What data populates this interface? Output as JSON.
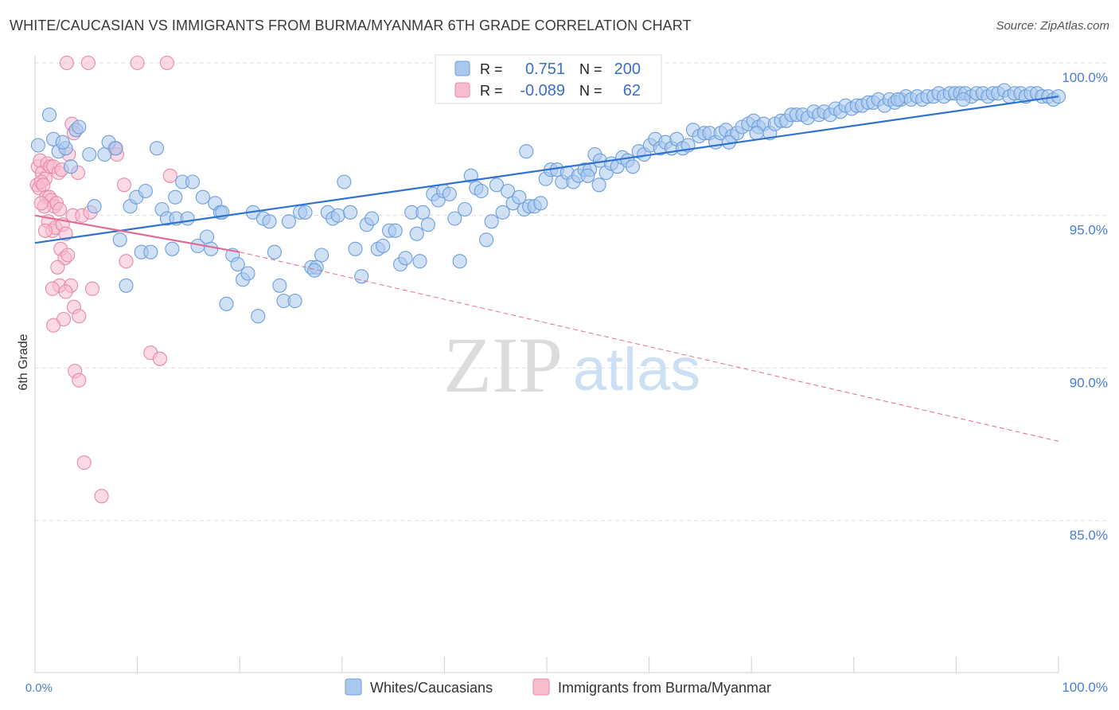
{
  "title": "WHITE/CAUCASIAN VS IMMIGRANTS FROM BURMA/MYANMAR 6TH GRADE CORRELATION CHART",
  "source": "Source: ZipAtlas.com",
  "watermark": {
    "zip": "ZIP",
    "atlas": "atlas"
  },
  "colors": {
    "blue_fill": "#aac8ee",
    "blue_stroke": "#6d9fdc",
    "blue_line": "#2f72d0",
    "pink_fill": "#f7bccd",
    "pink_stroke": "#e88aa8",
    "pink_line": "#e46a96",
    "tick_label": "#4a7fcf",
    "grid": "#dedede"
  },
  "legend": {
    "rows": [
      {
        "r_label": "R =",
        "r_value": "0.751",
        "n_label": "N =",
        "n_value": "200"
      },
      {
        "r_label": "R =",
        "r_value": "-0.089",
        "n_label": "N =",
        "n_value": "62"
      }
    ]
  },
  "bottom_legend": [
    "Whites/Caucasians",
    "Immigrants from Burma/Myanmar"
  ],
  "chart_data": {
    "type": "scatter",
    "title": "WHITE/CAUCASIAN VS IMMIGRANTS FROM BURMA/MYANMAR 6TH GRADE CORRELATION CHART",
    "xlabel": "",
    "ylabel": "6th Grade",
    "xlim": [
      0,
      100
    ],
    "ylim": [
      80.5,
      100.8
    ],
    "x_tick_labels": [
      "0.0%",
      "100.0%"
    ],
    "y_ticks": [
      85,
      90,
      95,
      100
    ],
    "y_tick_labels": [
      "85.0%",
      "90.0%",
      "95.0%",
      "100.0%"
    ],
    "grid": true,
    "legend_position": "top-center",
    "series": [
      {
        "name": "Whites/Caucasians",
        "r": 0.751,
        "n": 200,
        "trend": {
          "x": [
            0,
            100
          ],
          "y": [
            94.1,
            98.9
          ]
        },
        "points": [
          [
            0.3,
            97.3
          ],
          [
            1.4,
            98.3
          ],
          [
            1.8,
            97.5
          ],
          [
            2.3,
            97.1
          ],
          [
            3.0,
            97.2
          ],
          [
            3.5,
            96.6
          ],
          [
            2.7,
            97.4
          ],
          [
            4.0,
            97.8
          ],
          [
            4.3,
            97.9
          ],
          [
            5.3,
            97.0
          ],
          [
            5.8,
            95.3
          ],
          [
            6.8,
            97.0
          ],
          [
            7.2,
            97.4
          ],
          [
            7.9,
            97.2
          ],
          [
            8.3,
            94.2
          ],
          [
            8.9,
            92.7
          ],
          [
            9.3,
            95.3
          ],
          [
            9.9,
            95.6
          ],
          [
            10.4,
            93.8
          ],
          [
            10.8,
            95.8
          ],
          [
            11.3,
            93.8
          ],
          [
            11.9,
            97.2
          ],
          [
            12.4,
            95.2
          ],
          [
            12.9,
            94.9
          ],
          [
            13.4,
            93.9
          ],
          [
            13.8,
            94.9
          ],
          [
            14.4,
            96.1
          ],
          [
            14.9,
            94.9
          ],
          [
            15.4,
            96.1
          ],
          [
            15.9,
            94.0
          ],
          [
            16.4,
            95.6
          ],
          [
            16.8,
            94.3
          ],
          [
            17.2,
            93.9
          ],
          [
            17.6,
            95.4
          ],
          [
            18.1,
            95.1
          ],
          [
            18.7,
            92.1
          ],
          [
            19.3,
            93.7
          ],
          [
            19.8,
            93.4
          ],
          [
            20.3,
            92.9
          ],
          [
            20.8,
            93.1
          ],
          [
            21.3,
            95.1
          ],
          [
            21.8,
            91.7
          ],
          [
            22.3,
            94.9
          ],
          [
            22.9,
            94.8
          ],
          [
            23.4,
            93.8
          ],
          [
            23.9,
            92.7
          ],
          [
            24.3,
            92.2
          ],
          [
            24.8,
            94.8
          ],
          [
            25.4,
            92.2
          ],
          [
            25.9,
            95.1
          ],
          [
            26.4,
            95.1
          ],
          [
            27.0,
            93.3
          ],
          [
            27.5,
            93.3
          ],
          [
            28.0,
            93.7
          ],
          [
            28.6,
            95.1
          ],
          [
            29.1,
            94.9
          ],
          [
            29.6,
            95.0
          ],
          [
            30.2,
            96.1
          ],
          [
            30.8,
            95.1
          ],
          [
            31.3,
            93.9
          ],
          [
            31.9,
            93.0
          ],
          [
            32.4,
            94.7
          ],
          [
            32.9,
            94.9
          ],
          [
            33.5,
            93.9
          ],
          [
            34.0,
            94.0
          ],
          [
            34.6,
            94.5
          ],
          [
            35.2,
            94.5
          ],
          [
            35.7,
            93.4
          ],
          [
            36.2,
            93.6
          ],
          [
            36.8,
            95.1
          ],
          [
            37.3,
            94.4
          ],
          [
            37.9,
            95.1
          ],
          [
            38.4,
            94.7
          ],
          [
            38.9,
            95.7
          ],
          [
            39.4,
            95.5
          ],
          [
            39.9,
            95.8
          ],
          [
            40.5,
            95.7
          ],
          [
            41.0,
            94.9
          ],
          [
            41.5,
            93.5
          ],
          [
            42.0,
            95.2
          ],
          [
            42.6,
            96.3
          ],
          [
            43.1,
            95.9
          ],
          [
            43.6,
            95.8
          ],
          [
            44.1,
            94.2
          ],
          [
            44.6,
            94.8
          ],
          [
            45.1,
            96.0
          ],
          [
            45.7,
            95.1
          ],
          [
            46.2,
            95.8
          ],
          [
            46.7,
            95.4
          ],
          [
            47.3,
            95.6
          ],
          [
            47.8,
            95.2
          ],
          [
            48.3,
            95.3
          ],
          [
            48.8,
            95.3
          ],
          [
            49.4,
            95.4
          ],
          [
            49.9,
            96.2
          ],
          [
            50.4,
            96.5
          ],
          [
            51.0,
            96.5
          ],
          [
            51.5,
            96.1
          ],
          [
            52.0,
            96.4
          ],
          [
            52.6,
            96.1
          ],
          [
            53.1,
            96.3
          ],
          [
            53.7,
            96.5
          ],
          [
            54.2,
            96.5
          ],
          [
            54.7,
            97.0
          ],
          [
            55.2,
            96.8
          ],
          [
            55.8,
            96.4
          ],
          [
            56.3,
            96.7
          ],
          [
            56.9,
            96.6
          ],
          [
            57.4,
            96.9
          ],
          [
            57.9,
            96.8
          ],
          [
            58.4,
            96.6
          ],
          [
            59.0,
            97.1
          ],
          [
            59.5,
            97.0
          ],
          [
            60.1,
            97.3
          ],
          [
            60.6,
            97.5
          ],
          [
            61.1,
            97.2
          ],
          [
            61.6,
            97.4
          ],
          [
            62.2,
            97.2
          ],
          [
            62.7,
            97.5
          ],
          [
            63.3,
            97.2
          ],
          [
            63.8,
            97.3
          ],
          [
            64.3,
            97.8
          ],
          [
            64.9,
            97.6
          ],
          [
            65.4,
            97.7
          ],
          [
            65.9,
            97.7
          ],
          [
            66.5,
            97.4
          ],
          [
            67.0,
            97.7
          ],
          [
            67.5,
            97.8
          ],
          [
            68.1,
            97.6
          ],
          [
            68.6,
            97.7
          ],
          [
            69.1,
            97.9
          ],
          [
            69.7,
            98.0
          ],
          [
            70.2,
            98.1
          ],
          [
            70.7,
            97.9
          ],
          [
            71.2,
            98.0
          ],
          [
            71.8,
            97.7
          ],
          [
            72.3,
            98.0
          ],
          [
            72.9,
            98.1
          ],
          [
            73.4,
            98.1
          ],
          [
            73.9,
            98.3
          ],
          [
            74.4,
            98.3
          ],
          [
            75.0,
            98.3
          ],
          [
            75.5,
            98.2
          ],
          [
            76.1,
            98.4
          ],
          [
            76.6,
            98.3
          ],
          [
            77.1,
            98.4
          ],
          [
            77.7,
            98.3
          ],
          [
            78.2,
            98.5
          ],
          [
            78.7,
            98.4
          ],
          [
            79.2,
            98.6
          ],
          [
            79.8,
            98.5
          ],
          [
            80.3,
            98.6
          ],
          [
            80.8,
            98.6
          ],
          [
            81.4,
            98.7
          ],
          [
            81.9,
            98.7
          ],
          [
            82.4,
            98.8
          ],
          [
            83.0,
            98.6
          ],
          [
            83.5,
            98.8
          ],
          [
            84.0,
            98.7
          ],
          [
            84.6,
            98.8
          ],
          [
            85.1,
            98.9
          ],
          [
            85.6,
            98.8
          ],
          [
            86.2,
            98.9
          ],
          [
            86.7,
            98.8
          ],
          [
            87.2,
            98.9
          ],
          [
            87.8,
            98.9
          ],
          [
            88.3,
            99.0
          ],
          [
            88.8,
            98.9
          ],
          [
            89.4,
            99.0
          ],
          [
            89.9,
            99.0
          ],
          [
            90.4,
            99.0
          ],
          [
            90.9,
            99.0
          ],
          [
            91.5,
            98.9
          ],
          [
            92.0,
            99.0
          ],
          [
            92.6,
            99.0
          ],
          [
            93.1,
            98.9
          ],
          [
            93.6,
            99.0
          ],
          [
            94.1,
            99.0
          ],
          [
            94.7,
            99.1
          ],
          [
            95.2,
            98.9
          ],
          [
            95.7,
            99.0
          ],
          [
            96.3,
            99.0
          ],
          [
            96.8,
            98.9
          ],
          [
            97.3,
            99.0
          ],
          [
            97.9,
            99.0
          ],
          [
            98.4,
            98.9
          ],
          [
            99.0,
            98.9
          ],
          [
            99.5,
            98.8
          ],
          [
            100.0,
            98.9
          ],
          [
            27.3,
            93.2
          ],
          [
            18.3,
            95.1
          ],
          [
            13.7,
            95.6
          ],
          [
            55.1,
            96.0
          ],
          [
            48.0,
            97.1
          ],
          [
            70.5,
            97.7
          ],
          [
            84.3,
            98.8
          ],
          [
            90.7,
            98.8
          ],
          [
            37.6,
            93.5
          ],
          [
            54.0,
            96.3
          ],
          [
            67.8,
            97.4
          ]
        ]
      },
      {
        "name": "Immigrants from Burma/Myanmar",
        "r": -0.089,
        "n": 62,
        "trend": {
          "x": [
            0,
            20
          ],
          "y": [
            95.0,
            93.8
          ]
        },
        "trend_extended": {
          "x": [
            20,
            100
          ],
          "y": [
            93.8,
            87.6
          ]
        },
        "points": [
          [
            3.1,
            100.0
          ],
          [
            5.2,
            100.0
          ],
          [
            10.0,
            100.0
          ],
          [
            12.9,
            100.0
          ],
          [
            3.6,
            98.0
          ],
          [
            3.8,
            97.7
          ],
          [
            7.8,
            97.2
          ],
          [
            8.0,
            97.0
          ],
          [
            0.3,
            96.6
          ],
          [
            0.5,
            96.8
          ],
          [
            0.7,
            96.4
          ],
          [
            1.0,
            96.2
          ],
          [
            1.2,
            96.7
          ],
          [
            1.5,
            96.6
          ],
          [
            1.8,
            96.6
          ],
          [
            2.3,
            96.4
          ],
          [
            2.6,
            96.5
          ],
          [
            3.3,
            97.0
          ],
          [
            4.2,
            96.4
          ],
          [
            0.2,
            96.0
          ],
          [
            0.4,
            95.9
          ],
          [
            0.6,
            96.1
          ],
          [
            0.8,
            96.0
          ],
          [
            1.1,
            95.6
          ],
          [
            1.4,
            95.6
          ],
          [
            1.6,
            95.5
          ],
          [
            1.9,
            95.3
          ],
          [
            2.1,
            95.4
          ],
          [
            2.4,
            95.2
          ],
          [
            0.9,
            95.3
          ],
          [
            1.3,
            94.8
          ],
          [
            1.7,
            94.5
          ],
          [
            2.0,
            94.6
          ],
          [
            2.7,
            94.7
          ],
          [
            3.0,
            94.4
          ],
          [
            3.7,
            95.0
          ],
          [
            4.6,
            95.0
          ],
          [
            5.4,
            95.1
          ],
          [
            0.6,
            95.4
          ],
          [
            1.0,
            94.5
          ],
          [
            2.5,
            93.9
          ],
          [
            2.9,
            93.6
          ],
          [
            3.2,
            93.7
          ],
          [
            2.2,
            93.3
          ],
          [
            8.7,
            96.0
          ],
          [
            8.9,
            93.5
          ],
          [
            13.2,
            96.3
          ],
          [
            2.4,
            92.7
          ],
          [
            3.5,
            92.7
          ],
          [
            5.6,
            92.6
          ],
          [
            1.7,
            92.6
          ],
          [
            3.8,
            92.0
          ],
          [
            4.3,
            91.7
          ],
          [
            2.8,
            91.6
          ],
          [
            1.8,
            91.4
          ],
          [
            11.3,
            90.5
          ],
          [
            12.2,
            90.3
          ],
          [
            3.9,
            89.9
          ],
          [
            4.3,
            89.6
          ],
          [
            4.8,
            86.9
          ],
          [
            6.5,
            85.8
          ],
          [
            3.0,
            92.5
          ]
        ]
      }
    ]
  }
}
